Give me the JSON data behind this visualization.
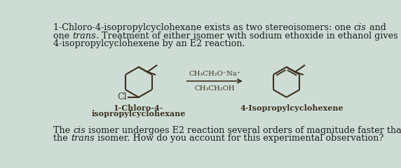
{
  "bg_color": "#cdddd5",
  "reagent_line1": "CH₃CH₂O⁻Na⁺",
  "reagent_line2": "CH₃CH₂OH",
  "label_left_line1": "1-Chloro-4-",
  "label_left_line2": "isopropylcyclohexane",
  "label_right": "4-Isopropylcyclohexene",
  "font_size_body": 9.2,
  "font_size_label": 8.0,
  "font_size_reagent": 7.2,
  "line_color": "#3c3020",
  "text_color": "#1a1a1a"
}
